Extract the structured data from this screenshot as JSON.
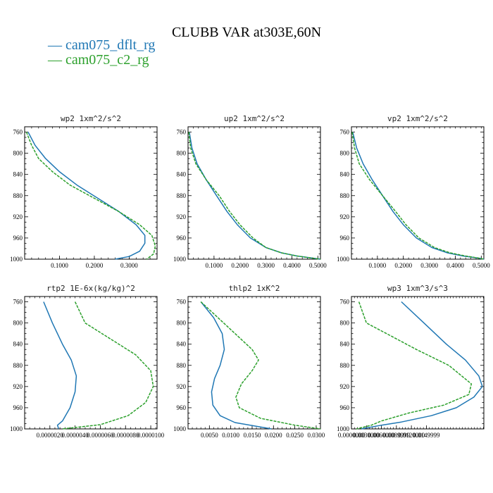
{
  "figure": {
    "title": "CLUBB VAR at303E,60N",
    "legend": [
      {
        "label": "— cam075_dflt_rg",
        "color": "#1f77b4"
      },
      {
        "label": "— cam075_c2_rg",
        "color": "#2ca02c"
      }
    ]
  },
  "chart_data": [
    {
      "type": "line",
      "title": "wp2   1xm^2/s^2",
      "xlim": [
        0,
        0.38
      ],
      "ylim": [
        1000,
        750
      ],
      "y_inverted": true,
      "xticks": [
        0.1,
        0.2,
        0.3
      ],
      "xtick_labels": [
        "0.1000",
        "0.2000",
        "0.3000"
      ],
      "yticks": [
        760,
        800,
        840,
        880,
        920,
        960,
        1000
      ],
      "series": [
        {
          "color": "#1f77b4",
          "style": "solid",
          "x": [
            0.01,
            0.03,
            0.06,
            0.1,
            0.15,
            0.21,
            0.27,
            0.32,
            0.345,
            0.345,
            0.33,
            0.3,
            0.26
          ],
          "y": [
            760,
            785,
            810,
            835,
            860,
            885,
            910,
            935,
            955,
            970,
            985,
            995,
            1000
          ]
        },
        {
          "color": "#2ca02c",
          "style": "dashed",
          "x": [
            0.005,
            0.02,
            0.04,
            0.08,
            0.13,
            0.2,
            0.27,
            0.33,
            0.365,
            0.375,
            0.37,
            0.35
          ],
          "y": [
            760,
            785,
            810,
            835,
            860,
            885,
            910,
            935,
            955,
            975,
            990,
            1000
          ]
        }
      ]
    },
    {
      "type": "line",
      "title": "up2   1xm^2/s^2",
      "xlim": [
        0,
        0.51
      ],
      "ylim": [
        1000,
        750
      ],
      "y_inverted": true,
      "xticks": [
        0.1,
        0.2,
        0.3,
        0.4,
        0.5
      ],
      "xtick_labels": [
        "0.1000",
        "0.2000",
        "0.3000",
        "0.4000",
        "0.5000"
      ],
      "yticks": [
        760,
        800,
        840,
        880,
        920,
        960,
        1000
      ],
      "series": [
        {
          "color": "#1f77b4",
          "style": "solid",
          "x": [
            0.005,
            0.015,
            0.035,
            0.07,
            0.11,
            0.15,
            0.19,
            0.24,
            0.3,
            0.36,
            0.42,
            0.48,
            0.51
          ],
          "y": [
            760,
            790,
            820,
            850,
            880,
            910,
            935,
            960,
            978,
            988,
            994,
            998,
            1000
          ]
        },
        {
          "color": "#2ca02c",
          "style": "dashed",
          "x": [
            0.003,
            0.01,
            0.03,
            0.07,
            0.12,
            0.16,
            0.2,
            0.25,
            0.3,
            0.36,
            0.42,
            0.48,
            0.51
          ],
          "y": [
            760,
            790,
            820,
            850,
            880,
            910,
            935,
            960,
            978,
            988,
            994,
            998,
            1000
          ]
        }
      ]
    },
    {
      "type": "line",
      "title": "vp2   1xm^2/s^2",
      "xlim": [
        0,
        0.51
      ],
      "ylim": [
        1000,
        750
      ],
      "y_inverted": true,
      "xticks": [
        0.1,
        0.2,
        0.3,
        0.4,
        0.5
      ],
      "xtick_labels": [
        "0.1000",
        "0.2000",
        "0.3000",
        "0.4000",
        "0.5000"
      ],
      "yticks": [
        760,
        800,
        840,
        880,
        920,
        960,
        1000
      ],
      "series": [
        {
          "color": "#1f77b4",
          "style": "solid",
          "x": [
            0.005,
            0.02,
            0.045,
            0.08,
            0.12,
            0.16,
            0.2,
            0.25,
            0.31,
            0.37,
            0.43,
            0.49,
            0.51
          ],
          "y": [
            760,
            790,
            820,
            850,
            880,
            910,
            935,
            960,
            978,
            988,
            994,
            998,
            1000
          ]
        },
        {
          "color": "#2ca02c",
          "style": "dashed",
          "x": [
            0.003,
            0.012,
            0.03,
            0.07,
            0.12,
            0.17,
            0.21,
            0.26,
            0.32,
            0.38,
            0.44,
            0.49,
            0.51
          ],
          "y": [
            760,
            790,
            820,
            850,
            880,
            910,
            935,
            960,
            978,
            988,
            994,
            998,
            1000
          ]
        }
      ]
    },
    {
      "type": "line",
      "title": "rtp2   1E-6x(kg/kg)^2",
      "xlim": [
        0,
        1.05e-05
      ],
      "ylim": [
        1000,
        750
      ],
      "y_inverted": true,
      "xticks": [
        2e-06,
        4e-06,
        6e-06,
        8e-06,
        1e-05
      ],
      "xtick_labels": [
        "0.0000020",
        "0.0000040",
        "0.0000060",
        "0.0000080",
        "0.0000100"
      ],
      "yticks": [
        760,
        800,
        840,
        880,
        920,
        960,
        1000
      ],
      "series": [
        {
          "color": "#1f77b4",
          "style": "solid",
          "x": [
            1.5e-06,
            2.2e-06,
            3e-06,
            3.7e-06,
            4.1e-06,
            4e-06,
            3.6e-06,
            3e-06,
            2.6e-06,
            2.7e-06
          ],
          "y": [
            760,
            800,
            840,
            870,
            900,
            930,
            960,
            985,
            993,
            1000
          ]
        },
        {
          "color": "#2ca02c",
          "style": "dashed",
          "x": [
            4e-06,
            4.8e-06,
            6.8e-06,
            8.8e-06,
            1e-05,
            1.02e-05,
            9.6e-06,
            8.2e-06,
            6e-06,
            3e-06
          ],
          "y": [
            760,
            800,
            830,
            860,
            890,
            920,
            950,
            975,
            992,
            1000
          ]
        }
      ]
    },
    {
      "type": "line",
      "title": "thlp2   1xK^2",
      "xlim": [
        0,
        0.031
      ],
      "ylim": [
        1000,
        750
      ],
      "y_inverted": true,
      "xticks": [
        0.005,
        0.01,
        0.015,
        0.02,
        0.025,
        0.03
      ],
      "xtick_labels": [
        "0.0050",
        "0.0100",
        "0.0150",
        "0.0200",
        "0.0250",
        "0.0300"
      ],
      "yticks": [
        760,
        800,
        840,
        880,
        920,
        960,
        1000
      ],
      "series": [
        {
          "color": "#1f77b4",
          "style": "solid",
          "x": [
            0.003,
            0.006,
            0.008,
            0.0085,
            0.0075,
            0.0062,
            0.0055,
            0.0058,
            0.0075,
            0.011,
            0.016,
            0.0195
          ],
          "y": [
            760,
            790,
            820,
            850,
            880,
            905,
            930,
            955,
            975,
            988,
            995,
            1000
          ]
        },
        {
          "color": "#2ca02c",
          "style": "dashed",
          "x": [
            0.003,
            0.007,
            0.011,
            0.015,
            0.0165,
            0.015,
            0.0125,
            0.0112,
            0.012,
            0.017,
            0.025,
            0.031
          ],
          "y": [
            760,
            790,
            820,
            850,
            870,
            890,
            915,
            940,
            960,
            980,
            993,
            1000
          ]
        }
      ]
    },
    {
      "type": "line",
      "title": "wp3   1xm^3/s^3",
      "xlim": [
        0,
        0.0265
      ],
      "ylim": [
        1000,
        750
      ],
      "y_inverted": true,
      "xticks": [
        0,
        0.003,
        0.006,
        0.009,
        0.012,
        0.015
      ],
      "xtick_labels": [
        "0.0000000",
        "0.0030000",
        "0.0060000",
        "0.0089999",
        "0.0120000",
        "0.0149999"
      ],
      "yticks": [
        760,
        800,
        840,
        880,
        920,
        960,
        1000
      ],
      "series": [
        {
          "color": "#1f77b4",
          "style": "solid",
          "x": [
            0.01,
            0.0145,
            0.019,
            0.0228,
            0.0255,
            0.0262,
            0.0245,
            0.021,
            0.016,
            0.01,
            0.006,
            0.002
          ],
          "y": [
            760,
            800,
            840,
            870,
            900,
            920,
            940,
            960,
            975,
            987,
            993,
            1000
          ]
        },
        {
          "color": "#2ca02c",
          "style": "dashed",
          "x": [
            0.0015,
            0.003,
            0.007,
            0.013,
            0.0195,
            0.024,
            0.0235,
            0.0185,
            0.0115,
            0.006,
            0.004,
            0.001
          ],
          "y": [
            760,
            800,
            820,
            850,
            880,
            915,
            935,
            955,
            970,
            985,
            993,
            1000
          ]
        }
      ]
    }
  ]
}
